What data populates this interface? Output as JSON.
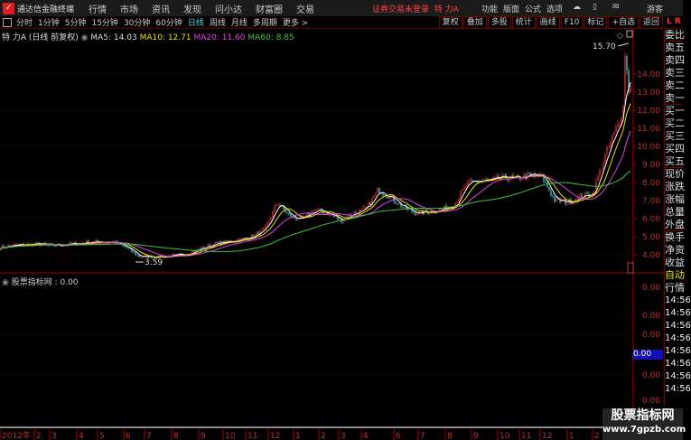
{
  "menubar": {
    "app_name": "通达信金融终端",
    "items": [
      "行情",
      "市场",
      "资讯",
      "发现",
      "问小达",
      "财富圈",
      "交易"
    ],
    "login_status": "证券交易未登录",
    "stock_name": "特 力A",
    "right_items": [
      "功能",
      "版面",
      "公式",
      "选项"
    ],
    "user": "游客"
  },
  "toolbar": {
    "periods": [
      "分时",
      "1分钟",
      "5分钟",
      "15分钟",
      "30分钟",
      "60分钟",
      "日线",
      "周线",
      "月线",
      "多周期",
      "更多 >"
    ],
    "active_period": "日线",
    "buttons": [
      "复权",
      "叠加",
      "多股",
      "统计",
      "画线",
      "F10",
      "标记",
      "+自选",
      "返回"
    ],
    "lr_indicator": "L R"
  },
  "info": {
    "title": "特 力A (日线 前复权)",
    "ma5": "MA5: 14.03",
    "ma10": "MA10: 12.71",
    "ma20": "MA20: 11.60",
    "ma60": "MA60: 8.85"
  },
  "colors": {
    "ma5": "#ffffff",
    "ma10": "#e8e000",
    "ma20": "#e040e0",
    "ma60": "#40c040",
    "up": "#ff3030",
    "down": "#40e0e0",
    "grid": "#5a0000"
  },
  "indicator": {
    "label": "股票指标网 : 0.00",
    "axis_labels": [
      "0.00",
      "0.00",
      "0.00",
      "0.00",
      "0.00"
    ],
    "selected_value": "0.00"
  },
  "right_panel": {
    "labels": [
      "委比",
      "卖五",
      "卖四",
      "卖三",
      "卖二",
      "卖一",
      "买一",
      "买二",
      "买三",
      "买四",
      "买五",
      "现价",
      "涨跌",
      "涨幅",
      "总量",
      "外盘",
      "换手",
      "净资",
      "收益"
    ],
    "auto": "自动",
    "quote": "行情",
    "times": [
      "14:56",
      "14:56",
      "14:56",
      "14:56",
      "14:56",
      "14:56",
      "14:56",
      "14:56"
    ]
  },
  "watermark": {
    "line1": "股票指标网",
    "line2": "www.7gpzb.com"
  },
  "chart_data": {
    "type": "candlestick",
    "y_ticks": [
      4,
      5,
      6,
      7,
      8,
      9,
      10,
      11,
      12,
      13,
      14
    ],
    "y_tick_labels": [
      "4.00",
      "5.00",
      "6.00",
      "7.00",
      "8.00",
      "9.00",
      "10.00",
      "11.00",
      "12.00",
      "13.00",
      "14.00"
    ],
    "x_tick_labels": [
      "2012年",
      "2",
      "3",
      "4",
      "5",
      "6",
      "7",
      "8",
      "9",
      "10",
      "11",
      "12",
      "1",
      "2",
      "3",
      "4",
      "6",
      "7",
      "8",
      "9",
      "10",
      "11",
      "12",
      "1",
      "2"
    ],
    "annotations": {
      "high": "15.70",
      "low": "3.59"
    },
    "close_approx": [
      4.4,
      4.5,
      4.55,
      4.6,
      4.5,
      4.55,
      4.6,
      4.7,
      4.7,
      4.7,
      4.4,
      3.9,
      3.9,
      3.9,
      3.95,
      4.1,
      4.35,
      4.6,
      4.7,
      4.85,
      5.0,
      5.4,
      6.9,
      6.1,
      5.95,
      6.5,
      6.3,
      5.9,
      6.3,
      6.5,
      7.6,
      7.2,
      6.6,
      6.3,
      6.4,
      6.5,
      6.8,
      7.9,
      8.1,
      8.1,
      8.3,
      8.2,
      8.4,
      8.3,
      7.0,
      6.9,
      7.2,
      7.4,
      9.5,
      11.2,
      13.5
    ],
    "ma_values": {
      "MA5": 14.03,
      "MA10": 12.71,
      "MA20": 11.6,
      "MA60": 8.85
    }
  }
}
